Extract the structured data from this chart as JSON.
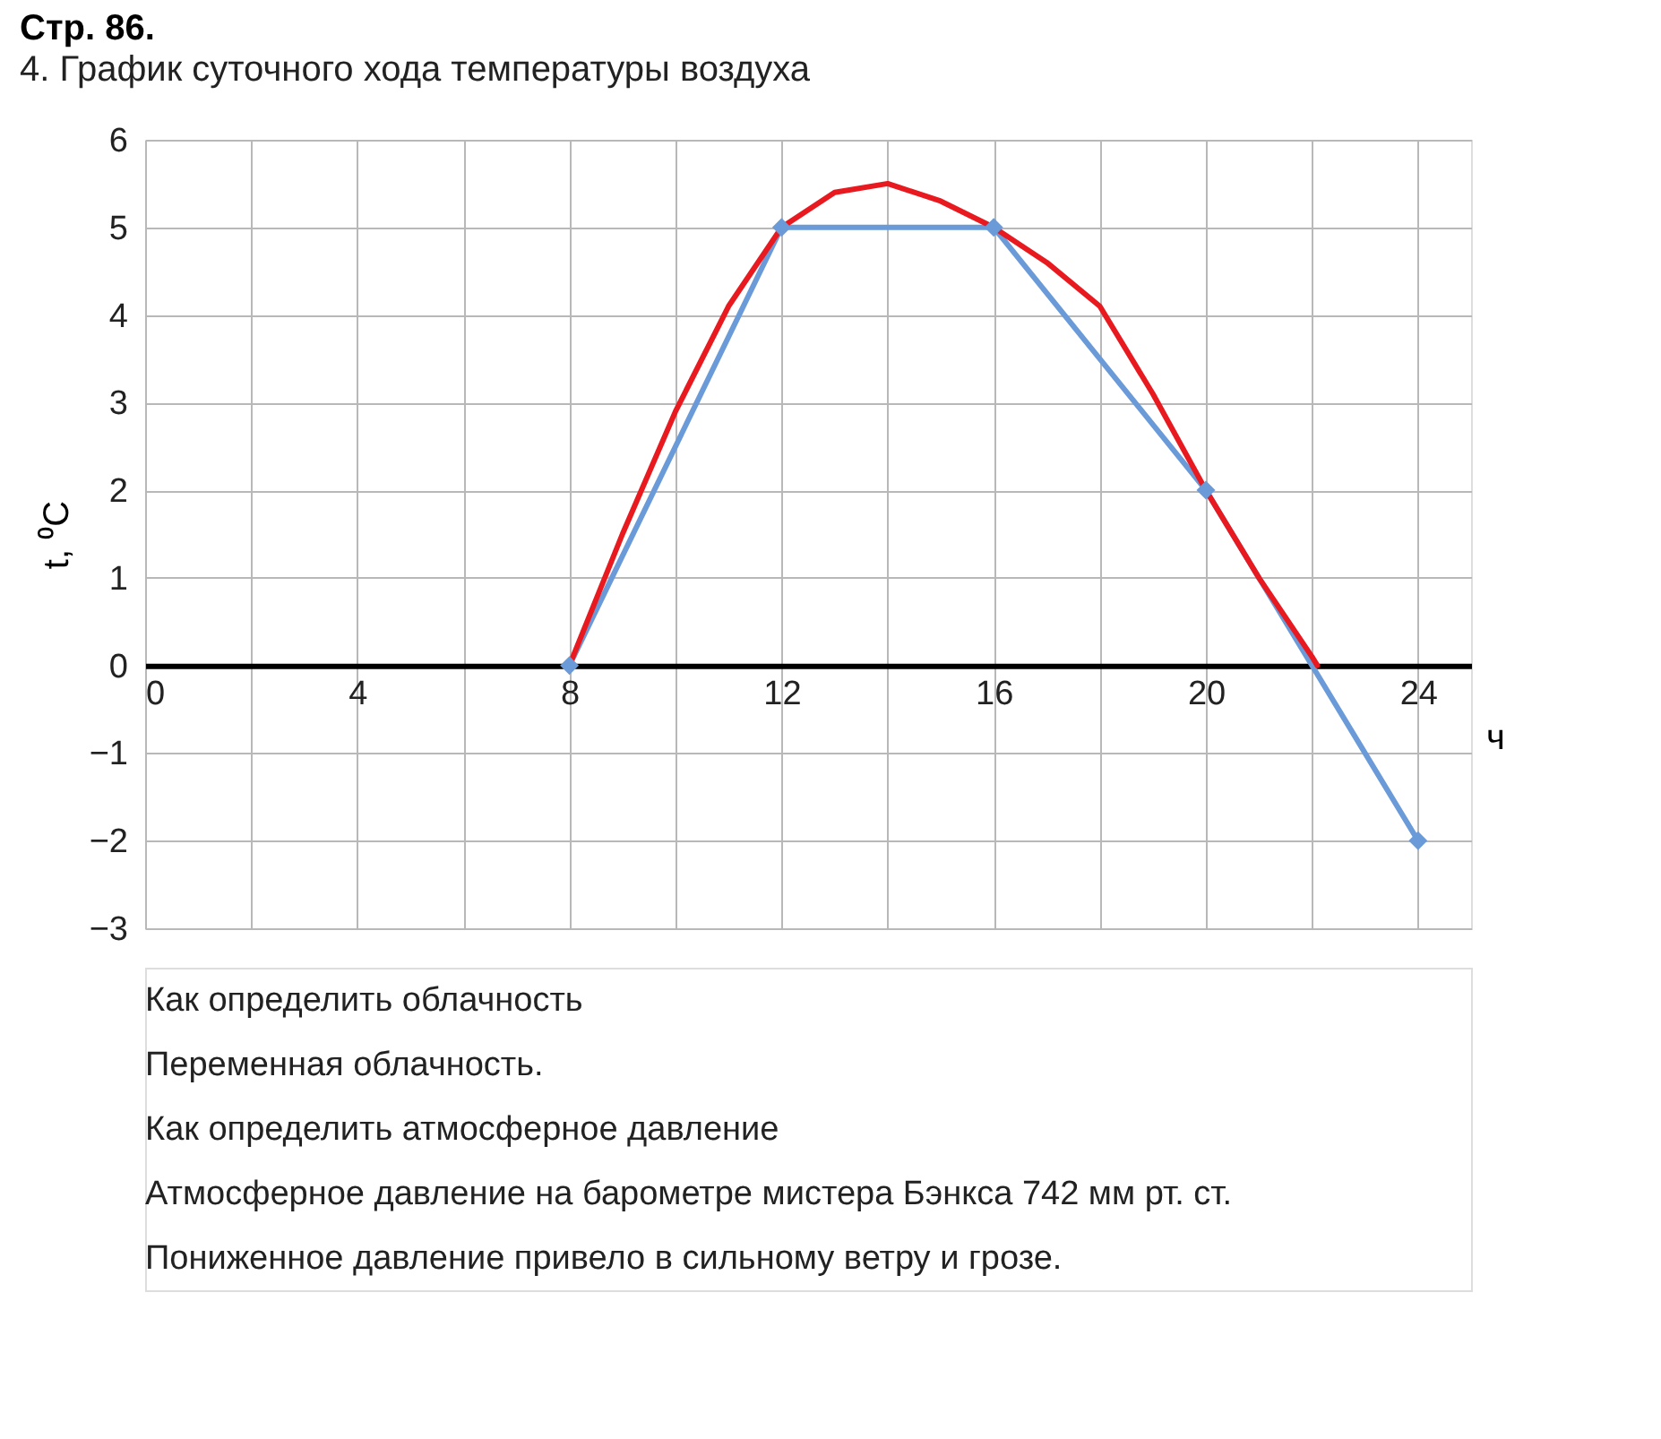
{
  "chart_data": {
    "type": "line",
    "title": "Стр. 86.",
    "subtitle": "4. График суточного хода температуры воздуха",
    "ylabel": "t, ⁰C",
    "xlabel": "ч",
    "xlim": [
      0,
      25
    ],
    "xticks": [
      0,
      {
        "value": 2,
        "label": null
      },
      4,
      {
        "value": 6,
        "label": null
      },
      8,
      {
        "value": 10,
        "label": null
      },
      12,
      {
        "value": 14,
        "label": null
      },
      16,
      {
        "value": 18,
        "label": null
      },
      20,
      {
        "value": 22,
        "label": null
      },
      24
    ],
    "ylim": [
      -3,
      6
    ],
    "yticks": [
      -3,
      -2,
      -1,
      0,
      1,
      2,
      3,
      4,
      5,
      6
    ],
    "grid": true,
    "series": [
      {
        "color": "#6a9bd8",
        "marker": "diamond",
        "x": [
          8,
          12,
          16,
          20,
          24
        ],
        "values": [
          0,
          5,
          5,
          2,
          -2
        ]
      },
      {
        "color": "#e8191f",
        "marker": "none",
        "x": [
          8,
          9,
          10,
          11,
          12,
          13,
          14,
          15,
          16,
          17,
          18,
          19,
          20,
          21,
          22,
          22.1
        ],
        "values": [
          0,
          1.5,
          2.9,
          4.1,
          5,
          5.4,
          5.5,
          5.3,
          5,
          4.6,
          4.1,
          3.1,
          2,
          1,
          0.1,
          0
        ]
      }
    ],
    "annotations": [
      "Как определить облачность",
      "Переменная облачность.",
      "Как определить атмосферное давление",
      "Атмосферное давление на барометре мистера Бэнкса 742 мм рт. ст.",
      "Пониженное давление привело в сильному ветру и грозе."
    ]
  }
}
